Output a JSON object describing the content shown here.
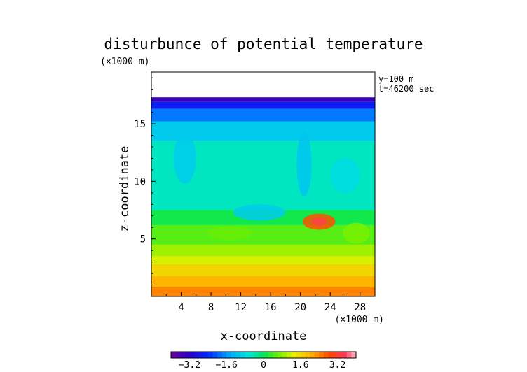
{
  "chart_data": {
    "type": "heatmap",
    "title": "disturbunce of potential temperature",
    "xlabel": "x-coordinate",
    "ylabel": "z-coordinate",
    "x_unit": "(×1000 m)",
    "y_unit": "(×1000 m)",
    "annotations": [
      "y=100 m",
      "t=46200 sec"
    ],
    "xlim": [
      0,
      30
    ],
    "ylim": [
      0,
      19.5
    ],
    "x_ticks": [
      "4",
      "8",
      "12",
      "16",
      "20",
      "24",
      "28"
    ],
    "y_ticks": [
      "5",
      "10",
      "15"
    ],
    "colorbar_ticks": [
      "−3.2",
      "−1.6",
      "0",
      "1.6",
      "3.2"
    ],
    "colorbar_range": [
      -4.0,
      4.0
    ],
    "field_top_z": 17.3,
    "bands": [
      {
        "z0": 0,
        "z1": 0.8,
        "value": 2.4
      },
      {
        "z0": 0.8,
        "z1": 1.8,
        "value": 2.0
      },
      {
        "z0": 1.8,
        "z1": 2.8,
        "value": 1.6
      },
      {
        "z0": 2.8,
        "z1": 3.5,
        "value": 1.2
      },
      {
        "z0": 3.5,
        "z1": 4.5,
        "value": 0.9
      },
      {
        "z0": 4.5,
        "z1": 6.2,
        "value": 0.5
      },
      {
        "z0": 6.2,
        "z1": 7.5,
        "value": 0.1
      },
      {
        "z0": 7.5,
        "z1": 13.5,
        "value": -0.5
      },
      {
        "z0": 13.5,
        "z1": 15.2,
        "value": -1.0
      },
      {
        "z0": 15.2,
        "z1": 16.3,
        "value": -1.8
      },
      {
        "z0": 16.3,
        "z1": 16.9,
        "value": -2.6
      },
      {
        "z0": 16.9,
        "z1": 17.3,
        "value": -3.4
      }
    ],
    "features": [
      {
        "x": 22.5,
        "z": 6.5,
        "rx": 2.2,
        "rz": 0.7,
        "value": 2.8
      },
      {
        "x": 22.5,
        "z": 6.5,
        "rx": 1.0,
        "rz": 0.35,
        "value": 3.4
      },
      {
        "x": 14.5,
        "z": 7.3,
        "rx": 3.5,
        "rz": 0.7,
        "value": -1.0
      },
      {
        "x": 20.5,
        "z": 11.5,
        "rx": 1.0,
        "rz": 2.8,
        "value": -1.1
      },
      {
        "x": 4.5,
        "z": 12.0,
        "rx": 1.5,
        "rz": 2.2,
        "value": -1.0
      },
      {
        "x": 26.0,
        "z": 10.5,
        "rx": 2.0,
        "rz": 1.5,
        "value": -0.8
      },
      {
        "x": 10.5,
        "z": 5.5,
        "rx": 3.0,
        "rz": 0.6,
        "value": 0.6
      },
      {
        "x": 27.5,
        "z": 5.5,
        "rx": 1.8,
        "rz": 0.9,
        "value": 0.7
      }
    ]
  }
}
